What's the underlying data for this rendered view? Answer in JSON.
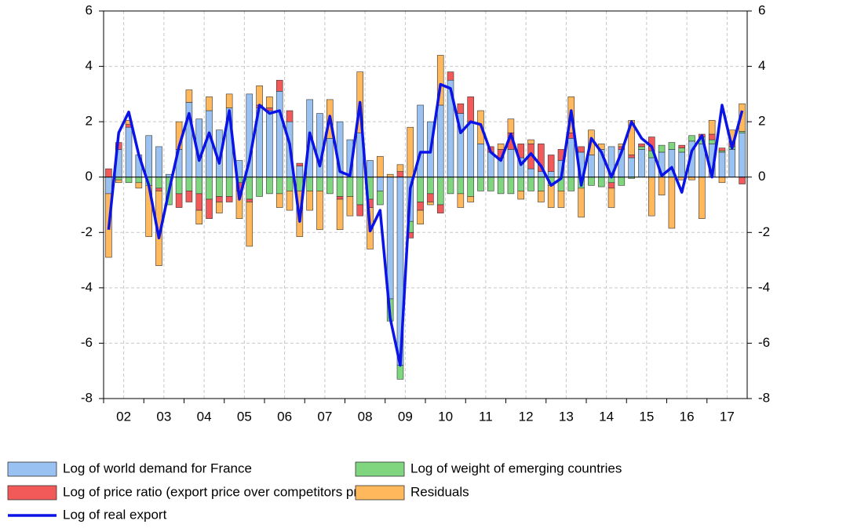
{
  "chart_data": {
    "type": "bar",
    "categories": [
      "02",
      null,
      null,
      null,
      "03",
      null,
      null,
      null,
      "04",
      null,
      null,
      null,
      "05",
      null,
      null,
      null,
      "06",
      null,
      null,
      null,
      "07",
      null,
      null,
      null,
      "08",
      null,
      null,
      null,
      "09",
      null,
      null,
      null,
      "10",
      null,
      null,
      null,
      "11",
      null,
      null,
      null,
      "12",
      null,
      null,
      null,
      "13",
      null,
      null,
      null,
      "14",
      null,
      null,
      null,
      "15",
      null,
      null,
      null,
      "16",
      null,
      null,
      null,
      "17",
      null,
      null,
      null
    ],
    "series": [
      {
        "name": "Log of world demand for France",
        "color": "#99c2f2",
        "values": [
          -0.6,
          1.0,
          1.8,
          0.8,
          1.5,
          1.1,
          0.1,
          1.0,
          2.7,
          2.1,
          2.4,
          1.7,
          2.5,
          0.6,
          3.0,
          2.5,
          2.4,
          3.1,
          2.0,
          0.4,
          2.8,
          2.3,
          1.4,
          2.0,
          1.35,
          1.6,
          0.6,
          -0.5,
          -4.4,
          -6.8,
          -1.6,
          2.6,
          2.0,
          2.6,
          3.5,
          2.3,
          2.0,
          1.2,
          0.9,
          0.7,
          1.0,
          0.7,
          0.3,
          0.2,
          0.2,
          0.6,
          1.4,
          0.9,
          0.8,
          1.0,
          1.1,
          1.0,
          0.7,
          1.0,
          0.7,
          0.9,
          1.0,
          0.9,
          1.3,
          1.2,
          1.2,
          0.9,
          1.0,
          1.6
        ]
      },
      {
        "name": "Log of weight of emerging countries",
        "color": "#7fd67f",
        "values": [
          0,
          -0.1,
          -0.2,
          -0.2,
          -0.3,
          -0.4,
          -1.0,
          -0.6,
          -0.5,
          -0.6,
          -0.8,
          -0.7,
          -0.7,
          -0.2,
          -0.8,
          -0.7,
          -0.6,
          -0.6,
          -0.5,
          -0.5,
          -0.5,
          -0.5,
          -0.6,
          -0.7,
          -0.7,
          -1.0,
          -0.8,
          -0.5,
          -0.8,
          -0.5,
          -0.4,
          -0.9,
          -0.6,
          -1.0,
          -0.6,
          -0.6,
          -0.7,
          -0.5,
          -0.5,
          -0.6,
          -0.6,
          -0.5,
          -0.5,
          -0.5,
          -0.3,
          -0.5,
          -0.5,
          -0.4,
          -0.3,
          -0.35,
          -0.2,
          -0.3,
          -0.05,
          0.1,
          0.25,
          0.25,
          0.25,
          0.15,
          0.2,
          0.25,
          0.15,
          0.05,
          0.1,
          0.05
        ]
      },
      {
        "name": "Log of price ratio (export price over competitors prices)",
        "color": "#f25a5a",
        "values": [
          0.3,
          0.25,
          0.1,
          0,
          0,
          -0.1,
          0,
          -0.5,
          -0.4,
          -0.6,
          -0.7,
          -0.2,
          -0.2,
          -0.3,
          -0.1,
          0.1,
          0.1,
          0.4,
          0.4,
          0.1,
          0,
          0,
          0,
          -0.1,
          0,
          -0.4,
          -0.3,
          0,
          0,
          0.2,
          -0.2,
          -0.3,
          -0.3,
          -0.3,
          0.3,
          0.35,
          0.9,
          0,
          0.2,
          0.3,
          0.6,
          0.5,
          0.9,
          1.0,
          0.6,
          0.4,
          0.2,
          0.2,
          0,
          0,
          -0.2,
          0.1,
          0.1,
          0.1,
          0.5,
          0,
          0,
          0.1,
          0,
          0.1,
          0.2,
          0.1,
          0.2,
          -0.25
        ]
      },
      {
        "name": "Residuals",
        "color": "#ffb85c",
        "values": [
          -2.3,
          -0.1,
          0.15,
          -0.2,
          -1.85,
          -2.7,
          0,
          1.0,
          0.45,
          -0.5,
          0.5,
          -0.4,
          0.5,
          -1.0,
          -1.6,
          0.7,
          0.4,
          -0.5,
          -0.7,
          -1.65,
          -0.7,
          -1.4,
          1.4,
          -1.1,
          -0.7,
          2.2,
          -1.5,
          0.75,
          0.1,
          0.25,
          1.8,
          -0.5,
          -0.1,
          1.8,
          0,
          -0.5,
          -0.2,
          1.2,
          0,
          0.2,
          0.5,
          -0.3,
          0.15,
          -0.4,
          -0.8,
          -0.6,
          1.3,
          -1.05,
          0.9,
          0.2,
          -0.7,
          0.1,
          1.25,
          0,
          -1.4,
          -0.65,
          -1.85,
          -0.1,
          -0.1,
          -1.5,
          0.5,
          -0.2,
          0.4,
          1.0
        ]
      },
      {
        "name": "Log of real export",
        "color": "#0a14e6",
        "type": "line",
        "values": [
          -1.9,
          1.6,
          2.35,
          0.8,
          -0.3,
          -2.2,
          -0.5,
          1.1,
          2.3,
          0.6,
          1.6,
          0.5,
          2.4,
          -0.8,
          0.6,
          2.6,
          2.3,
          2.4,
          1.2,
          -1.6,
          1.6,
          0.4,
          2.2,
          0.2,
          0.05,
          2.7,
          -1.95,
          -1.2,
          -5.1,
          -6.8,
          -0.4,
          0.9,
          0.9,
          3.35,
          3.2,
          1.6,
          2.0,
          1.9,
          0.9,
          0.6,
          1.55,
          0.45,
          0.85,
          0.4,
          -0.3,
          -0.05,
          2.4,
          -0.3,
          1.4,
          0.9,
          0.0,
          0.9,
          2.0,
          1.4,
          1.1,
          0.05,
          0.35,
          -0.55,
          0.95,
          1.5,
          0.0,
          2.6,
          1.05,
          2.4
        ]
      }
    ],
    "ylim": [
      -8,
      6
    ],
    "yticks": [
      -8,
      -6,
      -4,
      -2,
      0,
      2,
      4,
      6
    ],
    "grid": true
  }
}
